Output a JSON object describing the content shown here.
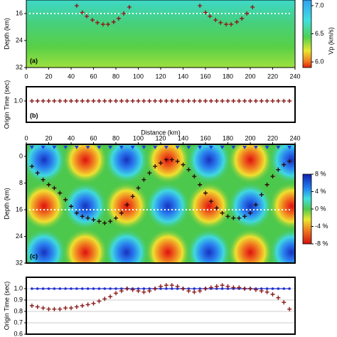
{
  "chart_data": [
    {
      "type": "scatter",
      "panel_label": "(a)",
      "ylabel": "Depth (km)",
      "x": [
        45,
        50,
        54,
        59,
        63.5,
        68.5,
        73,
        78,
        82.5,
        87,
        92,
        155,
        160,
        164,
        169,
        173.5,
        178.5,
        183,
        188,
        192.5,
        197,
        202
      ],
      "series": [
        {
          "color": "#8b1a1a",
          "values": [
            13.7,
            15.7,
            16.8,
            17.9,
            18.7,
            19.2,
            19.2,
            18.5,
            17.5,
            16,
            14.1,
            13.7,
            15.7,
            16.8,
            17.9,
            18.7,
            19.2,
            19.2,
            18.5,
            17.5,
            16,
            14.1
          ]
        }
      ],
      "star_depth": 16,
      "xlim": [
        0,
        240
      ],
      "xticks": [
        0,
        20,
        40,
        60,
        80,
        100,
        120,
        140,
        160,
        180,
        200,
        220,
        240
      ],
      "ylim": [
        32,
        12
      ],
      "yticks": [
        16,
        24,
        32
      ],
      "colorbar": {
        "label": "Vp (km/s)",
        "lim": [
          5.9,
          7.1
        ],
        "ticks": [
          {
            "value": 6,
            "label": "6.0"
          },
          6.5,
          {
            "value": 7,
            "label": "7.0"
          }
        ]
      }
    },
    {
      "type": "scatter",
      "panel_label": "(b)",
      "ylabel": "Origin Time (sec)",
      "x": [
        5,
        10,
        15,
        20,
        25,
        30,
        35,
        40,
        45,
        50,
        55,
        60,
        65,
        70,
        75,
        80,
        85,
        90,
        95,
        100,
        105,
        110,
        115,
        120,
        125,
        130,
        135,
        140,
        145,
        150,
        155,
        160,
        165,
        170,
        175,
        180,
        185,
        190,
        195,
        200,
        205,
        210,
        215,
        220,
        225,
        230,
        235
      ],
      "series": [
        {
          "color": "#8b1a1a",
          "values": [
            1,
            1,
            1,
            1,
            1,
            1,
            1,
            1,
            1,
            1,
            1,
            1,
            1,
            1,
            1,
            1,
            1,
            1,
            1,
            1,
            1,
            1,
            1,
            1,
            1,
            1,
            1,
            1,
            1,
            1,
            1,
            1,
            1,
            1,
            1,
            1,
            1,
            1,
            1,
            1,
            1,
            1,
            1,
            1,
            1,
            1,
            1
          ]
        }
      ],
      "xlim": [
        0,
        240
      ],
      "ylim": [
        0.88,
        1.08
      ],
      "yticks": [
        {
          "value": 1,
          "label": "1.0"
        }
      ]
    },
    {
      "type": "scatter",
      "panel_label": "(c)",
      "ylabel": "Depth (km)",
      "xlabel": "Distance (km)",
      "x": [
        5,
        10,
        15,
        20,
        25,
        30,
        35,
        40,
        45,
        50,
        55,
        60,
        65,
        70,
        75,
        80,
        85,
        90,
        95,
        100,
        105,
        110,
        115,
        120,
        125,
        130,
        135,
        140,
        145,
        150,
        155,
        160,
        165,
        170,
        175,
        180,
        185,
        190,
        195,
        200,
        205,
        210,
        215,
        220,
        225,
        230,
        235
      ],
      "series": [
        {
          "color": "#2a0a0a",
          "values": [
            3,
            5,
            7,
            8.5,
            9.5,
            11,
            13,
            15,
            17,
            18,
            18.5,
            19,
            19.5,
            20,
            19.5,
            18.5,
            17,
            14.5,
            12,
            9.5,
            7,
            5,
            3,
            2,
            1,
            1,
            1.5,
            2.5,
            4,
            6,
            8.5,
            11,
            13.5,
            15.5,
            17,
            18,
            18.5,
            18.5,
            18,
            17,
            14.5,
            11.5,
            8.5,
            6,
            4,
            2.5,
            1.5
          ]
        }
      ],
      "stations": [
        5,
        15,
        25,
        35,
        45,
        55,
        65,
        75,
        85,
        95,
        105,
        115,
        125,
        135,
        145,
        155,
        165,
        175,
        185,
        195,
        205,
        215,
        225,
        235
      ],
      "star_depth": 16,
      "xlim": [
        0,
        240
      ],
      "xticks": [
        0,
        20,
        40,
        60,
        80,
        100,
        120,
        140,
        160,
        180,
        200,
        220,
        240
      ],
      "ylim": [
        32,
        -3.6
      ],
      "yticks": [
        0,
        8,
        16,
        24,
        32
      ],
      "colorbar": {
        "lim": [
          -8,
          8
        ],
        "ticks": [
          {
            "value": 8,
            "label": "8 %"
          },
          {
            "value": 4,
            "label": "4 %"
          },
          {
            "value": 0,
            "label": "0 %"
          },
          {
            "value": -4,
            "label": "-4 %"
          },
          {
            "value": -8,
            "label": "-8 %"
          }
        ]
      }
    },
    {
      "type": "scatter",
      "ylabel": "Origin Time (sec)",
      "x": [
        5,
        10,
        15,
        20,
        25,
        30,
        35,
        40,
        45,
        50,
        55,
        60,
        65,
        70,
        75,
        80,
        85,
        90,
        95,
        100,
        105,
        110,
        115,
        120,
        125,
        130,
        135,
        140,
        145,
        150,
        155,
        160,
        165,
        170,
        175,
        180,
        185,
        190,
        195,
        200,
        205,
        210,
        215,
        220,
        225,
        230,
        235
      ],
      "series": [
        {
          "color": "#1f2fd0",
          "marker": "dot",
          "line": true,
          "values": [
            1,
            1,
            1,
            1,
            1,
            1,
            1,
            1,
            1,
            1,
            1,
            1,
            1,
            1,
            1,
            1,
            1,
            1,
            1,
            1,
            1,
            1,
            1,
            1,
            1,
            1,
            1,
            1,
            1,
            1,
            1,
            1,
            1,
            1,
            1,
            1,
            1,
            1,
            1,
            1,
            1,
            1,
            1,
            1,
            1,
            1,
            1
          ]
        },
        {
          "color": "#8b1a1a",
          "values": [
            0.85,
            0.84,
            0.83,
            0.82,
            0.82,
            0.82,
            0.83,
            0.83,
            0.84,
            0.85,
            0.86,
            0.87,
            0.89,
            0.91,
            0.93,
            0.96,
            0.98,
            1.0,
            0.99,
            0.98,
            0.97,
            0.98,
            1.0,
            1.02,
            1.03,
            1.03,
            1.02,
            1.0,
            0.98,
            0.97,
            0.98,
            1.0,
            1.01,
            1.02,
            1.03,
            1.02,
            1.01,
            1.01,
            1.0,
            1.0,
            0.99,
            0.98,
            0.97,
            0.95,
            0.92,
            0.88,
            0.82
          ]
        }
      ],
      "xlim": [
        0,
        240
      ],
      "ylim": [
        0.6,
        1.1
      ],
      "yticks": [
        {
          "value": 1,
          "label": "1.0"
        },
        {
          "value": 0.9,
          "label": "0.9"
        },
        {
          "value": 0.8,
          "label": "0.8"
        },
        {
          "value": 0.7,
          "label": "0.7"
        },
        {
          "value": 0.6,
          "label": "0.6"
        }
      ],
      "grid": true
    }
  ]
}
